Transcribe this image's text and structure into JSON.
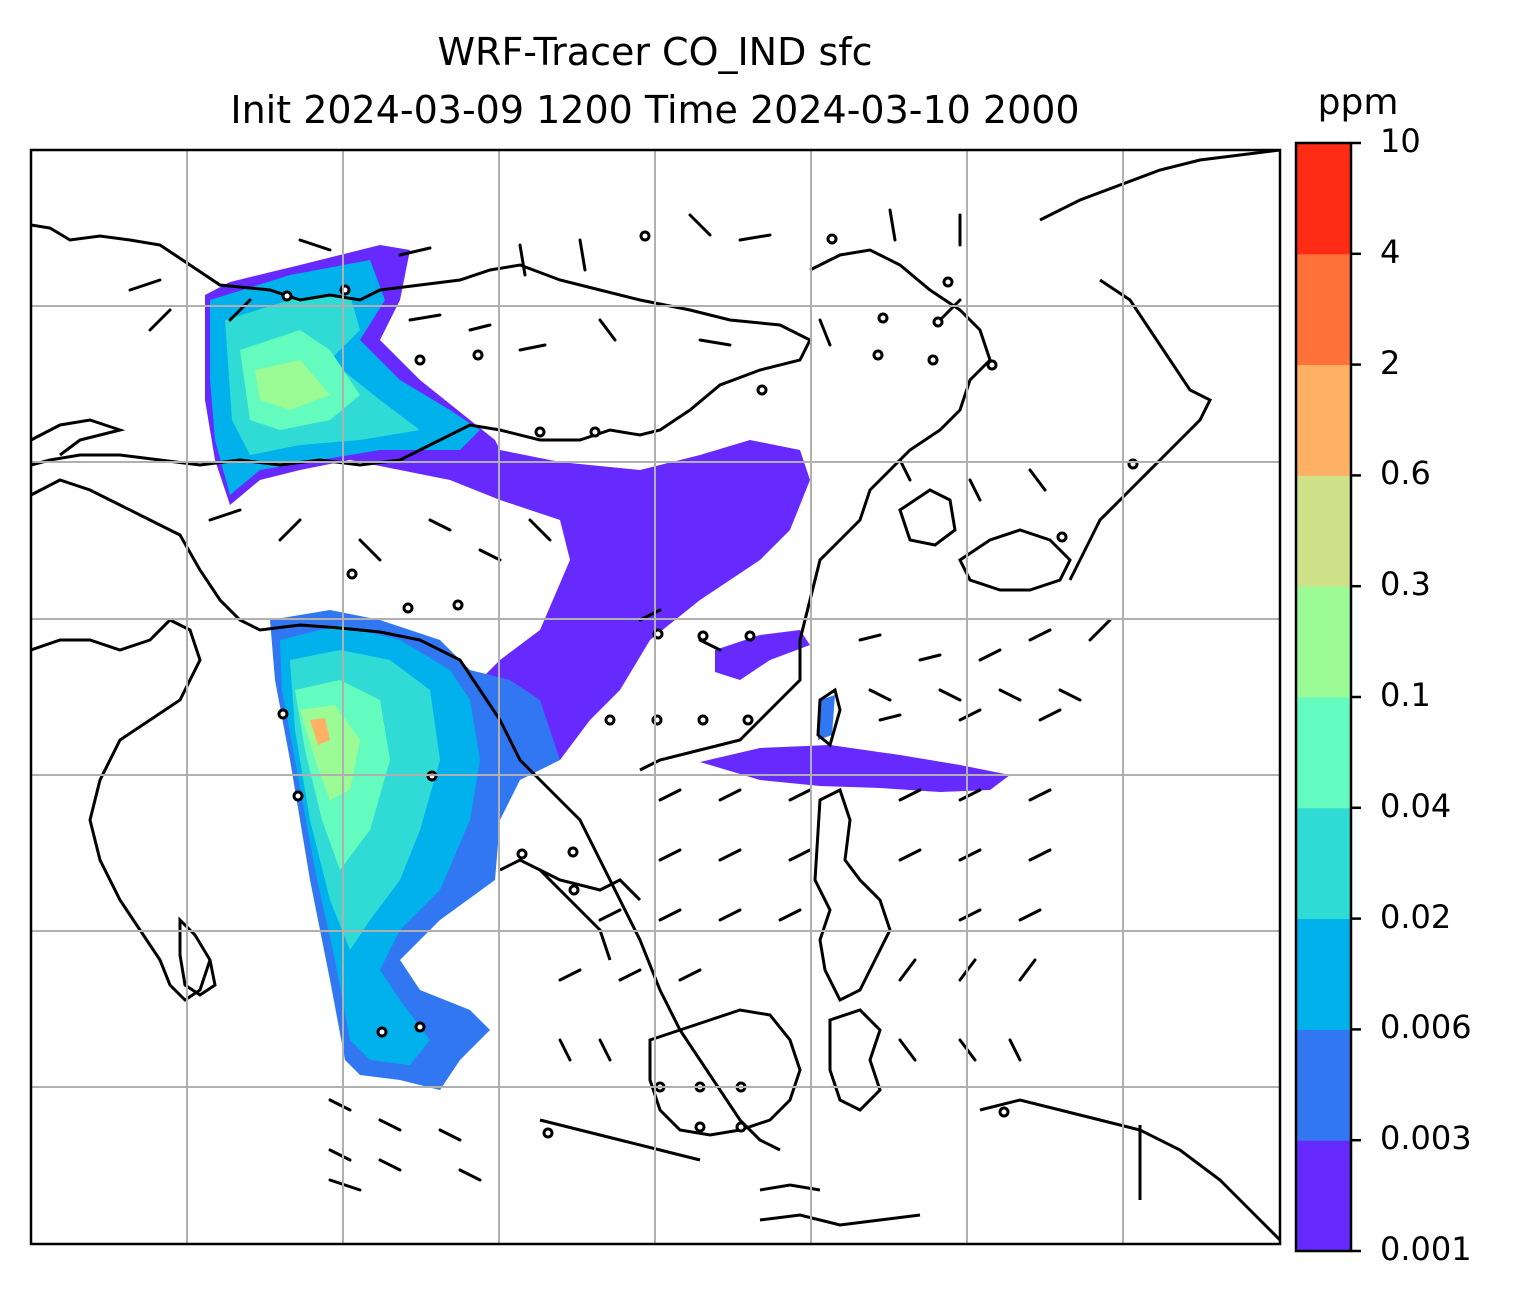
{
  "title": {
    "line1": "WRF-Tracer CO_IND sfc",
    "line2": "Init 2024-03-09 1200 Time 2024-03-10 2000"
  },
  "colorbar": {
    "unit": "ppm",
    "levels": [
      "0.001",
      "0.003",
      "0.006",
      "0.02",
      "0.04",
      "0.1",
      "0.3",
      "0.6",
      "2",
      "4",
      "10"
    ],
    "colors": [
      "#6629fe",
      "#3277f2",
      "#00b1ec",
      "#31dbd5",
      "#64fbbe",
      "#9bfb95",
      "#cfe289",
      "#feb164",
      "#fe7139",
      "#fe2c15"
    ]
  },
  "map": {
    "gridlines": true,
    "region": "South and East Asia",
    "wind_barbs": true,
    "tracer": "CO_IND"
  }
}
